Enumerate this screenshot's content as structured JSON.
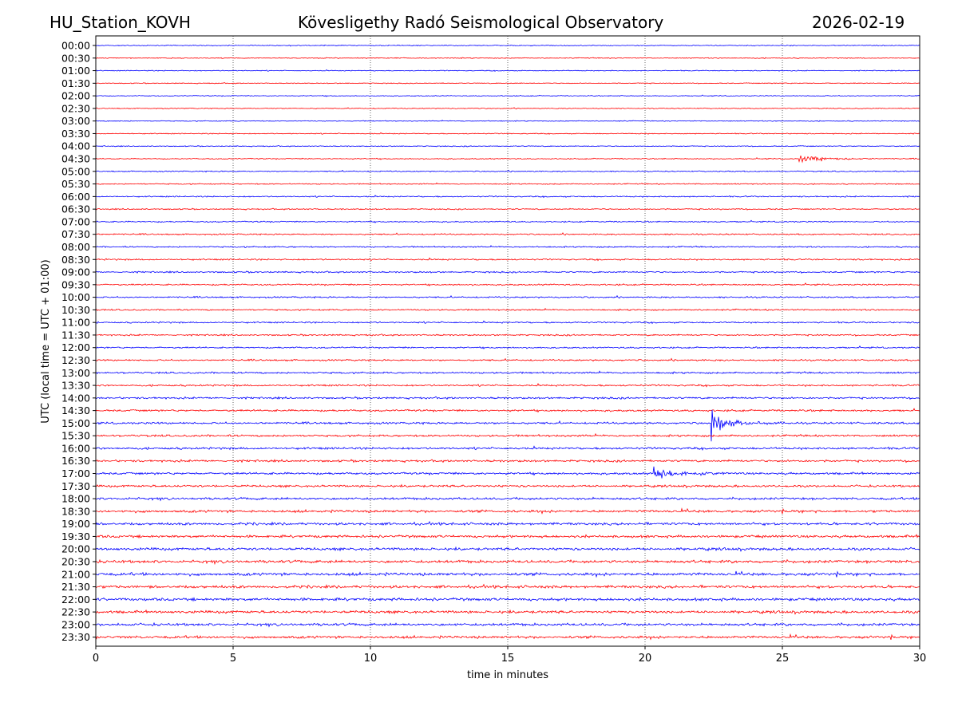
{
  "header": {
    "station": "HU_Station_KOVH",
    "observatory": "Kövesligethy Radó Seismological Observatory",
    "date": "2026-02-19"
  },
  "chart_data": {
    "type": "line",
    "title": "Kövesligethy Radó Seismological Observatory",
    "xlabel": "time in minutes",
    "ylabel": "UTC (local time = UTC + 01:00)",
    "xlim": [
      0,
      30
    ],
    "xticks": [
      "0",
      "5",
      "10",
      "15",
      "20",
      "25",
      "30"
    ],
    "grid": "vertical dotted lines at 5-minute ticks",
    "series_colors": {
      "even_rows": "#0000ff",
      "odd_rows": "#ff0000"
    },
    "rows": [
      {
        "label": "00:00",
        "color": "#0000ff",
        "noise": 0.35
      },
      {
        "label": "00:30",
        "color": "#ff0000",
        "noise": 0.35
      },
      {
        "label": "01:00",
        "color": "#0000ff",
        "noise": 0.35
      },
      {
        "label": "01:30",
        "color": "#ff0000",
        "noise": 0.35
      },
      {
        "label": "02:00",
        "color": "#0000ff",
        "noise": 0.35
      },
      {
        "label": "02:30",
        "color": "#ff0000",
        "noise": 0.35
      },
      {
        "label": "03:00",
        "color": "#0000ff",
        "noise": 0.35
      },
      {
        "label": "03:30",
        "color": "#ff0000",
        "noise": 0.38
      },
      {
        "label": "04:00",
        "color": "#0000ff",
        "noise": 0.38
      },
      {
        "label": "04:30",
        "color": "#ff0000",
        "noise": 0.4
      },
      {
        "label": "05:00",
        "color": "#0000ff",
        "noise": 0.45
      },
      {
        "label": "05:30",
        "color": "#ff0000",
        "noise": 0.45
      },
      {
        "label": "06:00",
        "color": "#0000ff",
        "noise": 0.5
      },
      {
        "label": "06:30",
        "color": "#ff0000",
        "noise": 0.5
      },
      {
        "label": "07:00",
        "color": "#0000ff",
        "noise": 0.5
      },
      {
        "label": "07:30",
        "color": "#ff0000",
        "noise": 0.55
      },
      {
        "label": "08:00",
        "color": "#0000ff",
        "noise": 0.55
      },
      {
        "label": "08:30",
        "color": "#ff0000",
        "noise": 0.6
      },
      {
        "label": "09:00",
        "color": "#0000ff",
        "noise": 0.6
      },
      {
        "label": "09:30",
        "color": "#ff0000",
        "noise": 0.6
      },
      {
        "label": "10:00",
        "color": "#0000ff",
        "noise": 0.6
      },
      {
        "label": "10:30",
        "color": "#ff0000",
        "noise": 0.6
      },
      {
        "label": "11:00",
        "color": "#0000ff",
        "noise": 0.6
      },
      {
        "label": "11:30",
        "color": "#ff0000",
        "noise": 0.6
      },
      {
        "label": "12:00",
        "color": "#0000ff",
        "noise": 0.6
      },
      {
        "label": "12:30",
        "color": "#ff0000",
        "noise": 0.65
      },
      {
        "label": "13:00",
        "color": "#0000ff",
        "noise": 0.7
      },
      {
        "label": "13:30",
        "color": "#ff0000",
        "noise": 0.7
      },
      {
        "label": "14:00",
        "color": "#0000ff",
        "noise": 0.75
      },
      {
        "label": "14:30",
        "color": "#ff0000",
        "noise": 0.75
      },
      {
        "label": "15:00",
        "color": "#0000ff",
        "noise": 0.8
      },
      {
        "label": "15:30",
        "color": "#ff0000",
        "noise": 0.8
      },
      {
        "label": "16:00",
        "color": "#0000ff",
        "noise": 0.85
      },
      {
        "label": "16:30",
        "color": "#ff0000",
        "noise": 0.85
      },
      {
        "label": "17:00",
        "color": "#0000ff",
        "noise": 0.85
      },
      {
        "label": "17:30",
        "color": "#ff0000",
        "noise": 0.85
      },
      {
        "label": "18:00",
        "color": "#0000ff",
        "noise": 0.9
      },
      {
        "label": "18:30",
        "color": "#ff0000",
        "noise": 1.0
      },
      {
        "label": "19:00",
        "color": "#0000ff",
        "noise": 1.0
      },
      {
        "label": "19:30",
        "color": "#ff0000",
        "noise": 1.0
      },
      {
        "label": "20:00",
        "color": "#0000ff",
        "noise": 1.05
      },
      {
        "label": "20:30",
        "color": "#ff0000",
        "noise": 1.1
      },
      {
        "label": "21:00",
        "color": "#0000ff",
        "noise": 1.15
      },
      {
        "label": "21:30",
        "color": "#ff0000",
        "noise": 1.1
      },
      {
        "label": "22:00",
        "color": "#0000ff",
        "noise": 1.1
      },
      {
        "label": "22:30",
        "color": "#ff0000",
        "noise": 1.05
      },
      {
        "label": "23:00",
        "color": "#0000ff",
        "noise": 1.0
      },
      {
        "label": "23:30",
        "color": "#ff0000",
        "noise": 1.0
      }
    ],
    "events": [
      {
        "row": "04:30",
        "start_min": 25.6,
        "end_min": 28.5,
        "amp": 1.6,
        "spike": 0
      },
      {
        "row": "15:00",
        "start_min": 22.4,
        "end_min": 25.2,
        "amp": 3.2,
        "spike": 12
      },
      {
        "row": "17:00",
        "start_min": 20.3,
        "end_min": 23.0,
        "amp": 2.4,
        "spike": 9
      }
    ]
  }
}
